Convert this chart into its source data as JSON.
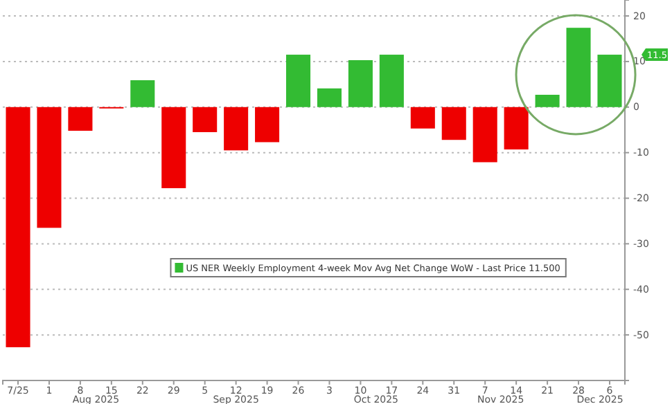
{
  "chart_data": {
    "type": "bar",
    "categories": [
      "7/25",
      "1",
      "8",
      "15",
      "22",
      "29",
      "5",
      "12",
      "19",
      "26",
      "3",
      "10",
      "17",
      "24",
      "31",
      "7",
      "14",
      "21",
      "28",
      "6"
    ],
    "series": [
      {
        "name": "US NER Weekly Employment 4-week Mov Avg Net Change WoW - Last Price 11.500",
        "color": "#33bb33",
        "values": [
          -52.7,
          -26.5,
          -5.2,
          -0.3,
          5.9,
          -17.8,
          -5.5,
          -9.5,
          -7.7,
          11.5,
          4.1,
          10.3,
          11.5,
          -4.7,
          -7.2,
          -12.1,
          -9.3,
          2.7,
          17.4,
          11.5
        ],
        "colors": [
          "#ee0000",
          "#ee0000",
          "#ee0000",
          "#ee0000",
          "#33bb33",
          "#ee0000",
          "#ee0000",
          "#ee0000",
          "#ee0000",
          "#33bb33",
          "#33bb33",
          "#33bb33",
          "#33bb33",
          "#ee0000",
          "#ee0000",
          "#ee0000",
          "#ee0000",
          "#33bb33",
          "#33bb33",
          "#33bb33"
        ]
      }
    ],
    "ylim": [
      -60,
      23.5
    ],
    "yticks": [
      -50,
      -40,
      -30,
      -20,
      -10,
      0,
      10,
      20
    ],
    "grid": "y",
    "legend": "bottom",
    "annotations": [
      "Aug 2025",
      "Sep 2025",
      "Oct 2025",
      "Nov 2025",
      "Dec 2025",
      "11.5"
    ]
  }
}
